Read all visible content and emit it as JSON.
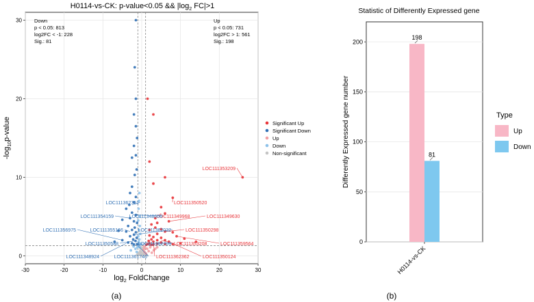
{
  "chart_data": [
    {
      "type": "scatter",
      "title": "H0114-vs-CK: p-value<0.05 && |log",
      "title_sub": "2",
      "title_end": " FC|>1",
      "xlabel": "log",
      "xlabel_sub": "2",
      "xlabel_end": " FoldChange",
      "ylabel": "-log",
      "ylabel_sub": "10",
      "ylabel_end": "p-value",
      "xlim": [
        -30,
        30
      ],
      "ylim": [
        -1,
        31
      ],
      "xticks": [
        -30,
        -20,
        -10,
        0,
        10,
        20,
        30
      ],
      "yticks": [
        0,
        10,
        20,
        30
      ],
      "thresholds": {
        "x": [
          -1,
          1
        ],
        "y": 1.3
      },
      "grid": true,
      "legend_position": "right",
      "stats_down": [
        "Down",
        "p < 0.05: 813",
        "log2FC < -1: 228",
        "Sig.: 81"
      ],
      "stats_up": [
        "Up",
        "p < 0.05: 731",
        "log2FC > 1: 561",
        "Sig.: 198"
      ],
      "series": [
        {
          "name": "Significant Up",
          "color": "#e8353a",
          "points": [
            [
              1.5,
              20
            ],
            [
              3,
              18
            ],
            [
              2,
              12
            ],
            [
              6,
              10
            ],
            [
              3,
              9.2
            ],
            [
              8,
              7.4
            ],
            [
              5,
              6.2
            ],
            [
              6,
              5.4
            ],
            [
              3.5,
              4.8
            ],
            [
              4,
              4.2
            ],
            [
              7,
              4.4
            ],
            [
              2.5,
              4
            ],
            [
              3.5,
              3.6
            ],
            [
              2,
              3.3
            ],
            [
              5,
              3.4
            ],
            [
              6,
              3.1
            ],
            [
              8,
              3
            ],
            [
              4,
              2.8
            ],
            [
              2,
              2.6
            ],
            [
              3,
              2.4
            ],
            [
              5,
              2.3
            ],
            [
              9,
              2.5
            ],
            [
              2.5,
              2.1
            ],
            [
              4,
              2
            ],
            [
              6,
              2
            ],
            [
              11,
              2.2
            ],
            [
              1.8,
              1.9
            ],
            [
              3,
              1.8
            ],
            [
              5,
              1.7
            ],
            [
              7,
              1.8
            ],
            [
              2,
              1.6
            ],
            [
              4,
              1.55
            ],
            [
              1.5,
              1.5
            ],
            [
              3,
              1.45
            ],
            [
              6,
              1.5
            ],
            [
              1.2,
              1.42
            ],
            [
              2.5,
              1.4
            ],
            [
              8,
              1.5
            ],
            [
              14,
              1.8
            ],
            [
              10,
              1.6
            ],
            [
              26,
              10
            ]
          ]
        },
        {
          "name": "Significant Down",
          "color": "#3271b5",
          "points": [
            [
              -1.5,
              30
            ],
            [
              -1.8,
              24
            ],
            [
              -1.5,
              20
            ],
            [
              -2,
              18
            ],
            [
              -1.5,
              16.5
            ],
            [
              -1.2,
              15
            ],
            [
              -2,
              14
            ],
            [
              -1.5,
              12.8
            ],
            [
              -2.5,
              12.5
            ],
            [
              -1.3,
              11
            ],
            [
              -1.8,
              10.3
            ],
            [
              -2.5,
              8.8
            ],
            [
              -3,
              8
            ],
            [
              -1.5,
              7.5
            ],
            [
              -3.2,
              6.5
            ],
            [
              -2,
              6.8
            ],
            [
              -4,
              6
            ],
            [
              -2.5,
              5.5
            ],
            [
              -1.5,
              5.2
            ],
            [
              -3,
              4.8
            ],
            [
              -5,
              4.6
            ],
            [
              -2,
              4.4
            ],
            [
              -1.2,
              4.2
            ],
            [
              -3.5,
              3.8
            ],
            [
              -1.8,
              3.6
            ],
            [
              -2.5,
              3.3
            ],
            [
              -4,
              3.1
            ],
            [
              -1.5,
              3
            ],
            [
              -6,
              3.2
            ],
            [
              -2,
              2.7
            ],
            [
              -3,
              2.5
            ],
            [
              -1.3,
              2.3
            ],
            [
              -2.2,
              2.1
            ],
            [
              -5,
              2
            ],
            [
              -1.6,
              1.9
            ],
            [
              -3.5,
              1.7
            ],
            [
              -2.5,
              1.6
            ],
            [
              -1.2,
              1.5
            ],
            [
              -7,
              1.8
            ],
            [
              -2,
              1.45
            ]
          ]
        },
        {
          "name": "Up",
          "color": "#f2a0a4",
          "points": [
            [
              0.6,
              1.2
            ],
            [
              0.9,
              1
            ],
            [
              1.4,
              0.9
            ],
            [
              2.2,
              1.1
            ],
            [
              3.1,
              0.7
            ],
            [
              0.5,
              0.8
            ],
            [
              1.8,
              0.6
            ],
            [
              4,
              1.1
            ],
            [
              2.6,
              0.4
            ],
            [
              1.1,
              0.3
            ],
            [
              3.5,
              0.9
            ],
            [
              0.7,
              0.5
            ]
          ]
        },
        {
          "name": "Down",
          "color": "#8ec2ea",
          "points": [
            [
              -0.8,
              6
            ],
            [
              -0.6,
              5
            ],
            [
              -0.9,
              4.5
            ],
            [
              -0.5,
              3.8
            ],
            [
              -0.7,
              3.3
            ],
            [
              -0.4,
              2.8
            ],
            [
              -0.9,
              2.5
            ],
            [
              -0.6,
              2.1
            ],
            [
              -0.8,
              1.8
            ],
            [
              -0.5,
              1.6
            ],
            [
              -0.3,
              1.45
            ],
            [
              -0.9,
              1.4
            ],
            [
              -0.6,
              8
            ],
            [
              -0.7,
              7
            ],
            [
              -1.1,
              1.1
            ],
            [
              -1.6,
              0.9
            ],
            [
              -2.1,
              1.2
            ],
            [
              -0.5,
              1.1
            ],
            [
              -2.8,
              0.7
            ],
            [
              -1.3,
              0.5
            ]
          ]
        },
        {
          "name": "Non-significant",
          "color": "#c4c4c4",
          "points": [
            [
              -0.3,
              0.9
            ],
            [
              0.2,
              0.8
            ],
            [
              -0.1,
              0.5
            ],
            [
              0.4,
              0.3
            ],
            [
              -0.5,
              0.2
            ],
            [
              0.1,
              0.1
            ],
            [
              -0.2,
              1.1
            ],
            [
              0.3,
              1
            ],
            [
              -0.4,
              0.6
            ],
            [
              0.5,
              0.6
            ],
            [
              -0.6,
              0.4
            ],
            [
              0.6,
              0.2
            ],
            [
              -0.8,
              0.1
            ],
            [
              0.8,
              0.4
            ],
            [
              -1,
              0.3
            ],
            [
              1,
              0.2
            ],
            [
              -1.2,
              0.1
            ],
            [
              1.3,
              0.1
            ],
            [
              0,
              0.05
            ],
            [
              -0.15,
              0.3
            ]
          ]
        }
      ],
      "annotations_up": [
        {
          "label": "LOC111353209",
          "x": 26,
          "y": 10
        },
        {
          "label": "LOC111350520",
          "x": 8,
          "y": 7.4
        },
        {
          "label": "LOC111349968",
          "x": 5,
          "y": 5.4
        },
        {
          "label": "LOC111349630",
          "x": 7,
          "y": 4.4
        },
        {
          "label": "LOC111350298",
          "x": 6,
          "y": 3.1
        },
        {
          "label": "LOC111353208",
          "x": 5,
          "y": 2
        },
        {
          "label": "LOC111359564",
          "x": 9,
          "y": 2.5
        },
        {
          "label": "LOC111362362",
          "x": 3,
          "y": 1.8
        },
        {
          "label": "LOC111350124",
          "x": 7,
          "y": 1.8
        }
      ],
      "annotations_down": [
        {
          "label": "LOC111362751",
          "x": -2.5,
          "y": 6.5
        },
        {
          "label": "LOC111354159",
          "x": -3,
          "y": 4.8
        },
        {
          "label": "LOC111348606",
          "x": -1.5,
          "y": 5.2
        },
        {
          "label": "LOC111356975",
          "x": -5,
          "y": 2
        },
        {
          "label": "LOC111355166",
          "x": -3,
          "y": 3.1
        },
        {
          "label": "LOC111362032",
          "x": -1.8,
          "y": 2.7
        },
        {
          "label": "LOC111350588",
          "x": -2,
          "y": 1.9
        },
        {
          "label": "LOC111362709",
          "x": -1.5,
          "y": 1.5
        },
        {
          "label": "LOC111348924",
          "x": -4,
          "y": 1.6
        },
        {
          "label": "LOC111361740",
          "x": -1.3,
          "y": 1.45
        }
      ]
    },
    {
      "type": "bar",
      "title": "Statistic of Differently Expressed gene",
      "ylabel": "Differently Expressed gene number",
      "categories": [
        "H0114-vs-CK"
      ],
      "series": [
        {
          "name": "Up",
          "values": [
            198
          ],
          "color": "#f8b7c6"
        },
        {
          "name": "Down",
          "values": [
            81
          ],
          "color": "#7ec8ef"
        }
      ],
      "ylim": [
        0,
        220
      ],
      "yticks": [
        0,
        50,
        100,
        150,
        200
      ],
      "grid": true,
      "legend_title": "Type",
      "legend_position": "right"
    }
  ],
  "captions": {
    "left": "(a)",
    "right": "(b)"
  }
}
